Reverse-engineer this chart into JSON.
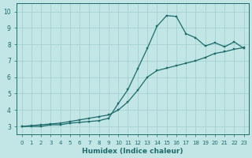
{
  "xlabel": "Humidex (Indice chaleur)",
  "ylabel": "",
  "xlim": [
    -0.5,
    23.5
  ],
  "ylim": [
    2.5,
    10.5
  ],
  "xticks": [
    0,
    1,
    2,
    3,
    4,
    5,
    6,
    7,
    8,
    9,
    10,
    11,
    12,
    13,
    14,
    15,
    16,
    17,
    18,
    19,
    20,
    21,
    22,
    23
  ],
  "yticks": [
    3,
    4,
    5,
    6,
    7,
    8,
    9,
    10
  ],
  "background_color": "#c2e5e5",
  "line_color": "#1e6b6b",
  "curve_x": [
    0,
    1,
    2,
    3,
    4,
    5,
    6,
    7,
    8,
    9,
    10,
    11,
    12,
    13,
    14,
    15,
    16,
    17,
    18,
    19,
    20,
    21,
    22,
    23
  ],
  "curve_y": [
    3.0,
    3.0,
    3.0,
    3.1,
    3.1,
    3.2,
    3.25,
    3.3,
    3.35,
    3.5,
    4.4,
    5.25,
    6.5,
    7.75,
    9.1,
    9.75,
    9.7,
    8.65,
    8.4,
    7.9,
    8.1,
    7.85,
    8.15,
    7.75
  ],
  "linear_x": [
    0,
    1,
    2,
    3,
    4,
    5,
    6,
    7,
    8,
    9,
    10,
    11,
    12,
    13,
    14,
    15,
    16,
    17,
    18,
    19,
    20,
    21,
    22,
    23
  ],
  "linear_y": [
    3.0,
    3.05,
    3.1,
    3.15,
    3.2,
    3.3,
    3.4,
    3.5,
    3.6,
    3.7,
    4.0,
    4.5,
    5.2,
    6.0,
    6.4,
    6.55,
    6.7,
    6.85,
    7.0,
    7.2,
    7.45,
    7.55,
    7.7,
    7.8
  ]
}
